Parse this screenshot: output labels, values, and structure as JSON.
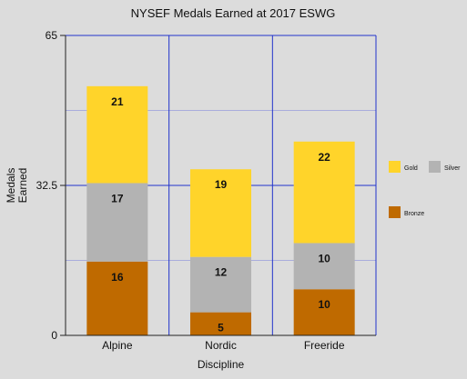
{
  "chart_data": {
    "type": "bar",
    "stacked": true,
    "title": "NYSEF Medals Earned at 2017 ESWG",
    "xlabel": "Discipline",
    "ylabel": "Medals Earned",
    "ylim": [
      0,
      65
    ],
    "yticks": [
      0,
      32.5,
      65
    ],
    "ytick_labels": [
      "0",
      "32.5",
      "65"
    ],
    "minor_grid": [
      16.25,
      48.75
    ],
    "grid": true,
    "legend_position": "right",
    "categories": [
      "Alpine",
      "Nordic",
      "Freeride"
    ],
    "series": [
      {
        "name": "Bronze",
        "color": "#bf6a00",
        "values": [
          16,
          5,
          10
        ]
      },
      {
        "name": "Silver",
        "color": "#b3b3b3",
        "values": [
          17,
          12,
          10
        ]
      },
      {
        "name": "Gold",
        "color": "#ffd42a",
        "values": [
          21,
          19,
          22
        ]
      }
    ],
    "axis_color": "#2233cc",
    "minor_grid_color": "#a9acdc"
  }
}
